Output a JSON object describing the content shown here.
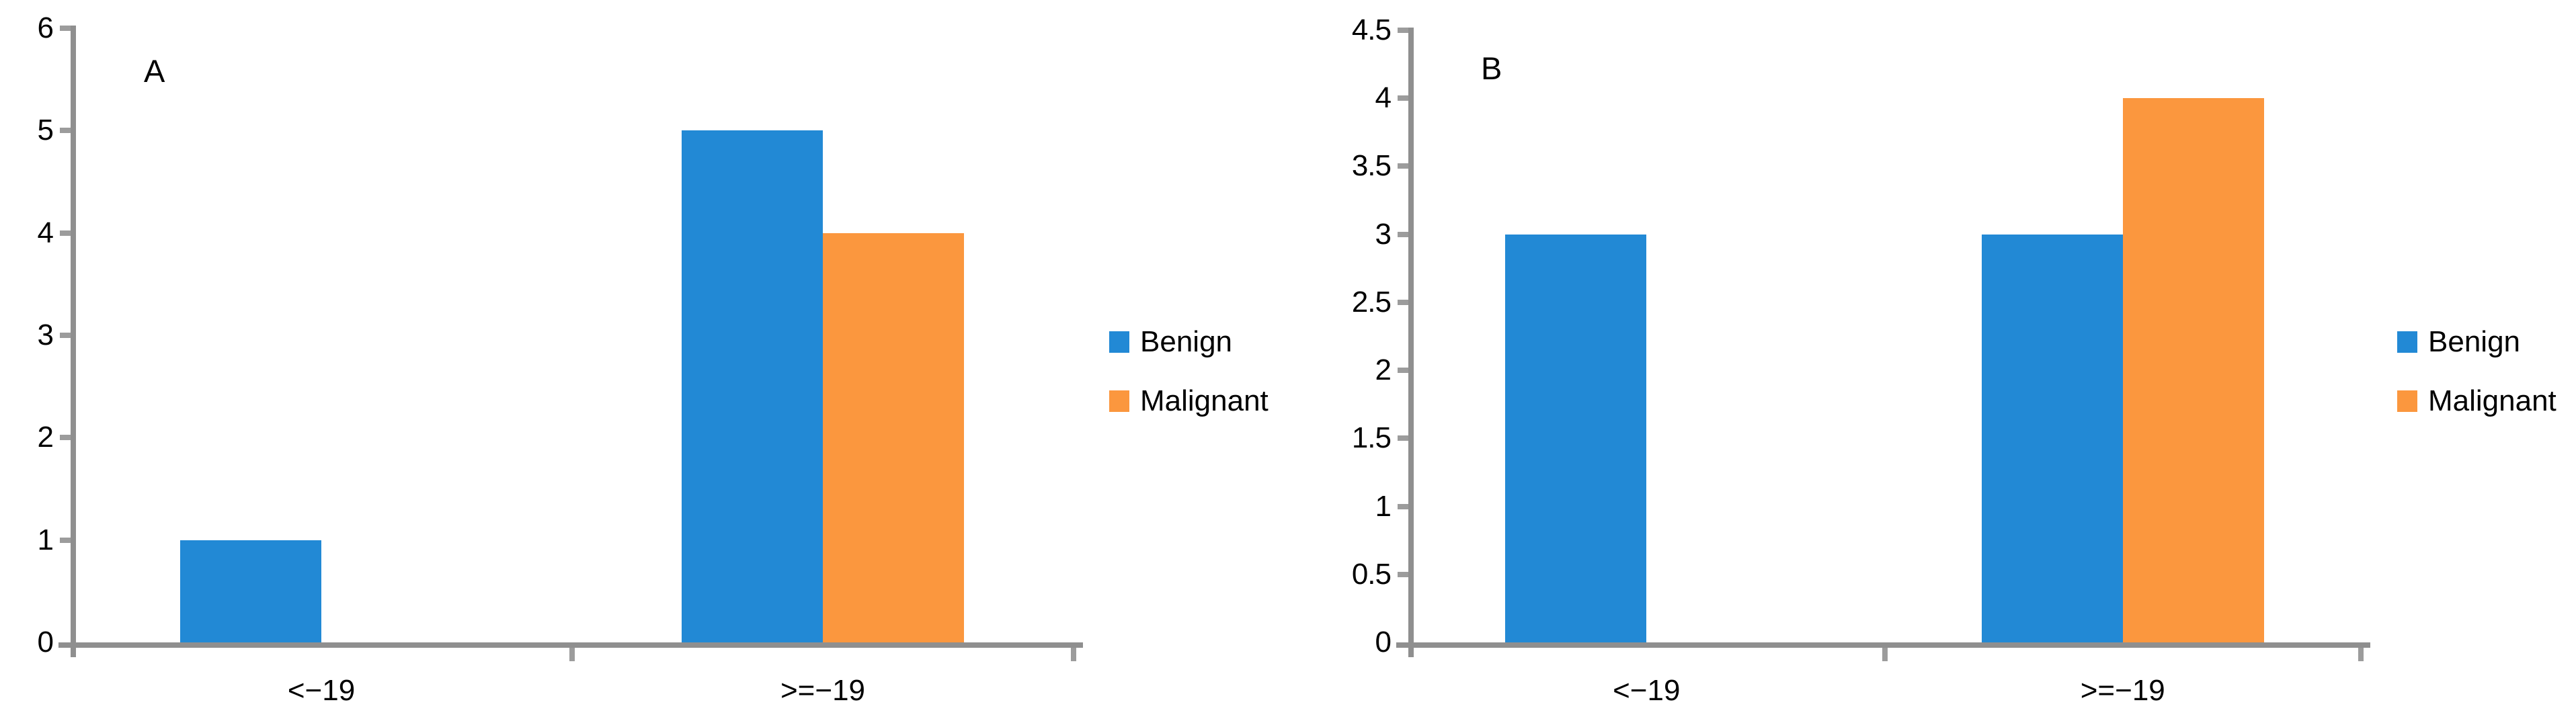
{
  "figure": {
    "background": "#FFFFFF",
    "axis_color": "#8F8F8F",
    "tick_color": "#9C9C9C",
    "text_color": "#000000"
  },
  "legend": {
    "items": [
      {
        "label": "Benign",
        "color": "#2289D5"
      },
      {
        "label": "Malignant",
        "color": "#FB973E"
      }
    ],
    "position": "right"
  },
  "chart_data": [
    {
      "type": "bar",
      "panel_label": "A",
      "title": "",
      "xlabel": "",
      "ylabel": "",
      "categories": [
        "<−19",
        ">=−19"
      ],
      "series": [
        {
          "name": "Benign",
          "color": "#2289D5",
          "values": [
            1,
            5
          ]
        },
        {
          "name": "Malignant",
          "color": "#FB973E",
          "values": [
            0,
            4
          ]
        }
      ],
      "ylim": [
        0,
        6
      ],
      "ytick_step": 1,
      "ytick_labels": [
        "0",
        "1",
        "2",
        "3",
        "4",
        "5",
        "6"
      ],
      "grid": false,
      "legend_position": "right"
    },
    {
      "type": "bar",
      "panel_label": "B",
      "title": "",
      "xlabel": "",
      "ylabel": "",
      "categories": [
        "<−19",
        ">=−19"
      ],
      "series": [
        {
          "name": "Benign",
          "color": "#2289D5",
          "values": [
            3,
            3
          ]
        },
        {
          "name": "Malignant",
          "color": "#FB973E",
          "values": [
            0,
            4
          ]
        }
      ],
      "ylim": [
        0,
        4.5
      ],
      "ytick_step": 0.5,
      "ytick_labels": [
        "0",
        "0.5",
        "1",
        "1.5",
        "2",
        "2.5",
        "3",
        "3.5",
        "4",
        "4.5"
      ],
      "grid": false,
      "legend_position": "right"
    }
  ]
}
